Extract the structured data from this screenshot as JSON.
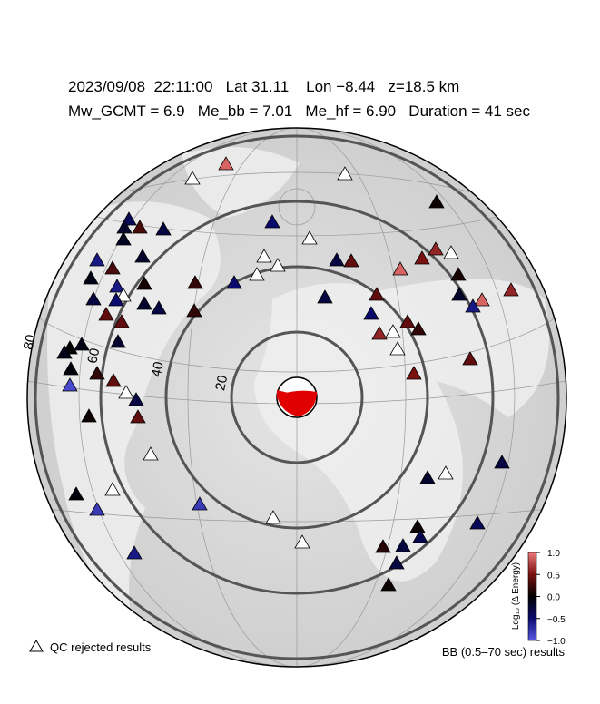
{
  "header": {
    "line1": "2023/09/08  22:11:00   Lat 31.11    Lon −8.44   z=18.5 km",
    "line2": "Mw_GCMT = 6.9   Me_bb = 7.01   Me_hf = 6.90   Duration = 41 sec"
  },
  "rings": [
    20,
    40,
    60,
    80
  ],
  "stations": {
    "values": [
      0.9,
      null,
      null,
      0.05,
      -0.4,
      -0.2,
      0.3,
      -0.3,
      -0.5,
      null,
      null,
      -0.15,
      -0.6,
      0.3,
      -0.2,
      null,
      null,
      -0.5,
      0.2,
      0.6,
      0.5,
      null,
      0.9,
      -0.3,
      0.4,
      -0.1,
      -0.6,
      null,
      0.1,
      -0.2,
      -0.3,
      -0.3,
      -0.5,
      0.4,
      0.4,
      0.2,
      -0.3,
      0.4,
      -0.5,
      0.1,
      -0.2,
      0.9,
      -0.6,
      0.6,
      0.4,
      0.6,
      null,
      0.2,
      0.0,
      -0.1,
      -0.1,
      -0.2,
      -0.05,
      0.2,
      0.4,
      null,
      -0.9,
      0.05,
      -0.3,
      0.4,
      0.4,
      0.5,
      null,
      null,
      -0.2,
      null,
      -0.3,
      null,
      -0.05,
      -0.8,
      -0.8,
      null,
      -0.4,
      0.05,
      0.15,
      -0.3,
      -0.35,
      null,
      -0.6,
      -0.3,
      0.05
    ]
  },
  "colorbar": {
    "label": "Log₁₀ (Δ Energy)",
    "range": [
      -1,
      1
    ],
    "colors": [
      "#5a5ae6",
      "#0a0a6e",
      "#000000",
      "#7a1010",
      "#f07878"
    ],
    "ticks": [
      {
        "value": 1,
        "label": "1.0"
      },
      {
        "value": 0.5,
        "label": "0.5"
      },
      {
        "value": 0,
        "label": "0.0"
      },
      {
        "value": -0.5,
        "label": "−0.5"
      },
      {
        "value": -1,
        "label": "−1.0"
      }
    ]
  },
  "legend": {
    "qc": "QC rejected results",
    "bb": "BB (0.5–70 sec) results"
  }
}
